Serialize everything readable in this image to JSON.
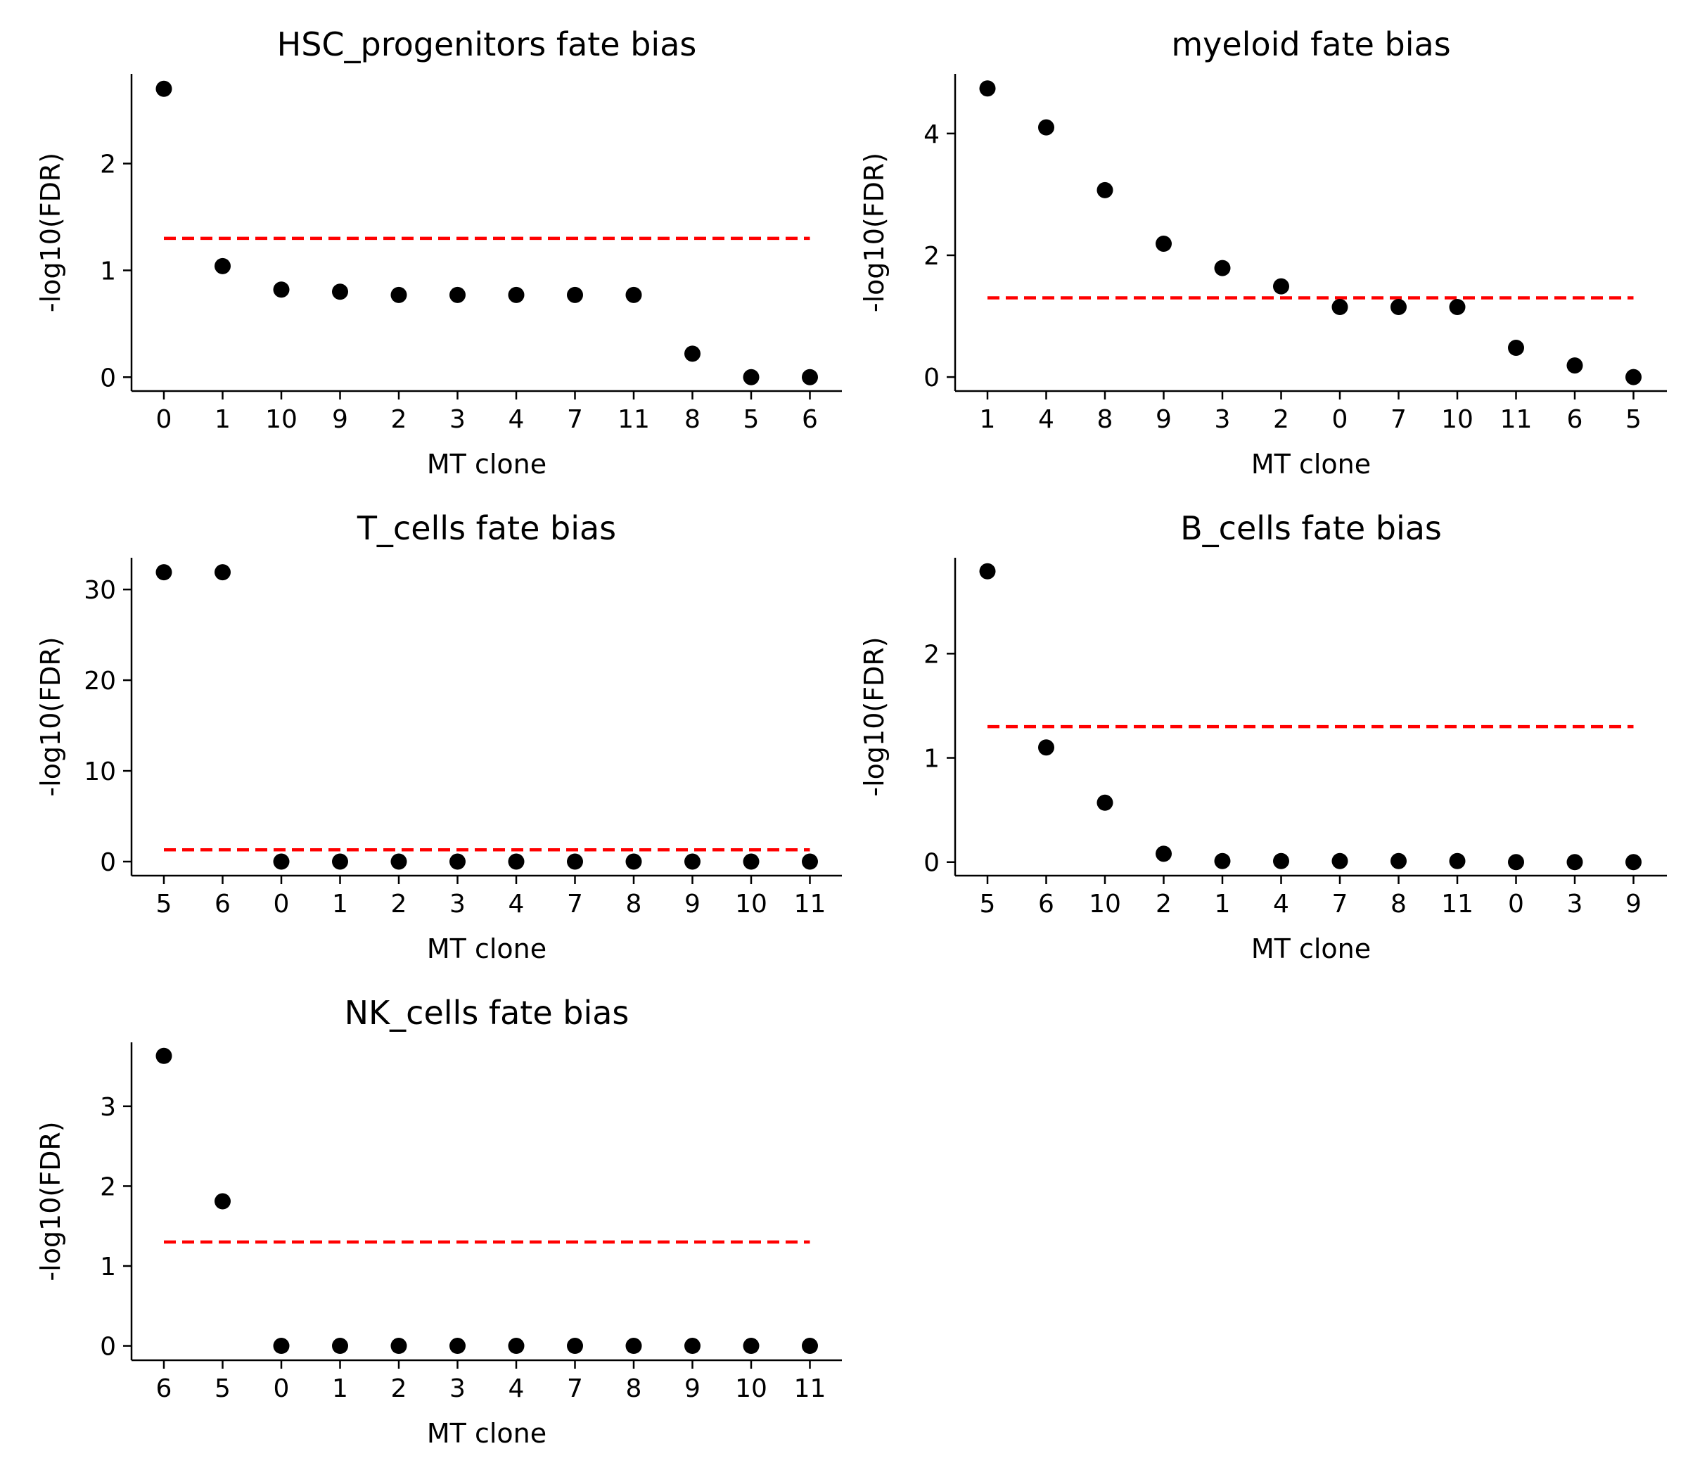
{
  "threshold_color": "#ff0000",
  "marker_color": "#000000",
  "chart_data": [
    {
      "type": "scatter",
      "title": "HSC_progenitors fate bias",
      "xlabel": "MT clone",
      "ylabel": "-log10(FDR)",
      "categories": [
        "0",
        "1",
        "10",
        "9",
        "2",
        "3",
        "4",
        "7",
        "11",
        "8",
        "5",
        "6"
      ],
      "values": [
        2.7,
        1.04,
        0.82,
        0.8,
        0.77,
        0.77,
        0.77,
        0.77,
        0.77,
        0.22,
        0.0,
        0.0
      ],
      "yticks": [
        0,
        1,
        2
      ],
      "ylim": [
        -0.13,
        2.84
      ],
      "threshold": 1.3,
      "grid": false
    },
    {
      "type": "scatter",
      "title": "myeloid fate bias",
      "xlabel": "MT clone",
      "ylabel": "-log10(FDR)",
      "categories": [
        "1",
        "4",
        "8",
        "9",
        "3",
        "2",
        "0",
        "7",
        "10",
        "11",
        "6",
        "5"
      ],
      "values": [
        4.74,
        4.1,
        3.07,
        2.19,
        1.79,
        1.49,
        1.15,
        1.15,
        1.15,
        0.48,
        0.19,
        0.0
      ],
      "yticks": [
        0,
        2,
        4
      ],
      "ylim": [
        -0.23,
        4.98
      ],
      "threshold": 1.3,
      "grid": false
    },
    {
      "type": "scatter",
      "title": "T_cells fate bias",
      "xlabel": "MT clone",
      "ylabel": "-log10(FDR)",
      "categories": [
        "5",
        "6",
        "0",
        "1",
        "2",
        "3",
        "4",
        "7",
        "8",
        "9",
        "10",
        "11"
      ],
      "values": [
        31.9,
        31.9,
        0,
        0,
        0,
        0,
        0,
        0,
        0,
        0,
        0,
        0
      ],
      "yticks": [
        0,
        10,
        20,
        30
      ],
      "ylim": [
        -1.55,
        33.5
      ],
      "threshold": 1.3,
      "grid": false
    },
    {
      "type": "scatter",
      "title": "B_cells fate bias",
      "xlabel": "MT clone",
      "ylabel": "-log10(FDR)",
      "categories": [
        "5",
        "6",
        "10",
        "2",
        "1",
        "4",
        "7",
        "8",
        "11",
        "0",
        "3",
        "9"
      ],
      "values": [
        2.79,
        1.1,
        0.57,
        0.08,
        0.01,
        0.01,
        0.01,
        0.01,
        0.01,
        0.0,
        0.0,
        0.0
      ],
      "yticks": [
        0,
        1,
        2
      ],
      "ylim": [
        -0.13,
        2.92
      ],
      "threshold": 1.3,
      "grid": false
    },
    {
      "type": "scatter",
      "title": "NK_cells fate bias",
      "xlabel": "MT clone",
      "ylabel": "-log10(FDR)",
      "categories": [
        "6",
        "5",
        "0",
        "1",
        "2",
        "3",
        "4",
        "7",
        "8",
        "9",
        "10",
        "11"
      ],
      "values": [
        3.63,
        1.81,
        0,
        0,
        0,
        0,
        0,
        0,
        0,
        0,
        0,
        0
      ],
      "yticks": [
        0,
        1,
        2,
        3
      ],
      "ylim": [
        -0.18,
        3.8
      ],
      "threshold": 1.3,
      "grid": false
    }
  ]
}
